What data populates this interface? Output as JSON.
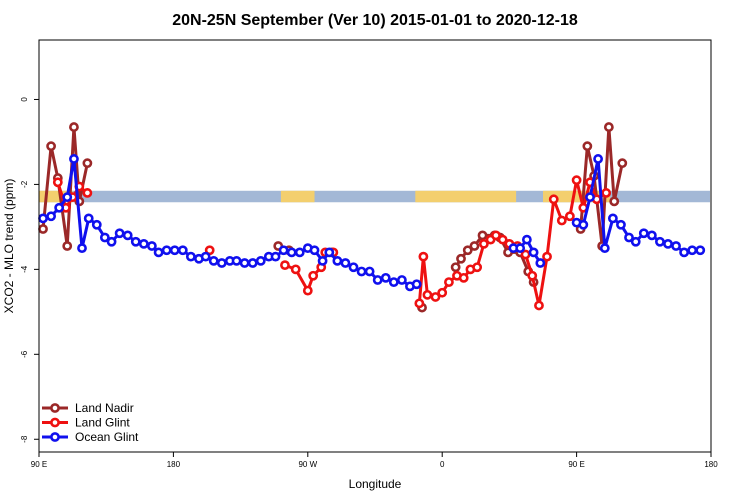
{
  "chart_data": {
    "type": "line",
    "title": "20N-25N September (Ver 10)   2015-01-01 to 2020-12-18",
    "xlabel": "Longitude",
    "ylabel": "XCO2 - MLO trend (ppm)",
    "xlim": [
      0,
      500
    ],
    "ylim": [
      -8.3,
      1.4
    ],
    "x_ticks": [
      {
        "value": 0,
        "label": "90 E"
      },
      {
        "value": 100,
        "label": "180"
      },
      {
        "value": 200,
        "label": "90 W"
      },
      {
        "value": 300,
        "label": "0"
      },
      {
        "value": 400,
        "label": "90 E"
      },
      {
        "value": 500,
        "label": "180"
      }
    ],
    "y_ticks": [
      {
        "value": 0,
        "label": "0"
      },
      {
        "value": -2,
        "label": "-2"
      },
      {
        "value": -4,
        "label": "-4"
      },
      {
        "value": -6,
        "label": "-6"
      },
      {
        "value": -8,
        "label": "-8"
      }
    ],
    "legend_position": "bottom-left",
    "land_band": {
      "y_range": [
        -2.15,
        -2.42
      ],
      "ocean_color": "#a3b8d6",
      "land_color": "#f3cf6e",
      "land_segments": [
        [
          0,
          25
        ],
        [
          180,
          205
        ],
        [
          280,
          355
        ],
        [
          375,
          425
        ]
      ]
    },
    "series": [
      {
        "name": "Land Nadir",
        "color": "#9b2828",
        "segments": [
          [
            [
              3,
              -3.05
            ],
            [
              9,
              -1.1
            ],
            [
              14,
              -1.85
            ],
            [
              21,
              -3.45
            ],
            [
              26,
              -0.65
            ],
            [
              30,
              -2.4
            ],
            [
              36,
              -1.5
            ]
          ],
          [
            [
              178,
              -3.45
            ],
            [
              186,
              -3.55
            ]
          ],
          [
            [
              218,
              -3.6
            ]
          ],
          [
            [
              285,
              -4.9
            ]
          ],
          [
            [
              310,
              -3.95
            ],
            [
              314,
              -3.75
            ],
            [
              319,
              -3.55
            ],
            [
              324,
              -3.45
            ],
            [
              330,
              -3.2
            ],
            [
              339,
              -3.2
            ],
            [
              343,
              -3.25
            ],
            [
              349,
              -3.6
            ],
            [
              358,
              -3.6
            ],
            [
              364,
              -4.05
            ],
            [
              368,
              -4.3
            ]
          ],
          [
            [
              403,
              -3.05
            ],
            [
              408,
              -1.1
            ],
            [
              413,
              -1.8
            ],
            [
              419,
              -3.45
            ],
            [
              424,
              -0.65
            ],
            [
              428,
              -2.4
            ],
            [
              434,
              -1.5
            ]
          ]
        ]
      },
      {
        "name": "Land Glint",
        "color": "#ee1111",
        "segments": [
          [
            [
              14,
              -1.95
            ],
            [
              20,
              -2.55
            ],
            [
              25,
              -2.3
            ],
            [
              30,
              -2.05
            ],
            [
              36,
              -2.2
            ]
          ],
          [
            [
              127,
              -3.55
            ]
          ],
          [
            [
              183,
              -3.9
            ],
            [
              191,
              -4.0
            ],
            [
              200,
              -4.5
            ],
            [
              204,
              -4.15
            ],
            [
              210,
              -3.95
            ],
            [
              213,
              -3.6
            ],
            [
              219,
              -3.6
            ]
          ],
          [
            [
              283,
              -4.8
            ],
            [
              286,
              -3.7
            ],
            [
              289,
              -4.6
            ],
            [
              295,
              -4.65
            ],
            [
              300,
              -4.55
            ],
            [
              305,
              -4.3
            ],
            [
              311,
              -4.15
            ],
            [
              316,
              -4.2
            ],
            [
              321,
              -4.0
            ],
            [
              326,
              -3.95
            ],
            [
              331,
              -3.4
            ],
            [
              336,
              -3.3
            ],
            [
              340,
              -3.2
            ],
            [
              345,
              -3.3
            ],
            [
              350,
              -3.4
            ],
            [
              356,
              -3.45
            ],
            [
              362,
              -3.65
            ],
            [
              367,
              -4.15
            ],
            [
              372,
              -4.85
            ],
            [
              378,
              -3.7
            ],
            [
              383,
              -2.35
            ],
            [
              389,
              -2.85
            ],
            [
              395,
              -2.75
            ],
            [
              400,
              -1.9
            ],
            [
              405,
              -2.55
            ],
            [
              410,
              -1.95
            ],
            [
              415,
              -2.35
            ],
            [
              422,
              -2.2
            ]
          ]
        ]
      },
      {
        "name": "Ocean Glint",
        "color": "#1010ee",
        "segments": [
          [
            [
              3,
              -2.8
            ],
            [
              9,
              -2.75
            ],
            [
              15,
              -2.55
            ],
            [
              21,
              -2.3
            ],
            [
              26,
              -1.4
            ],
            [
              32,
              -3.5
            ],
            [
              37,
              -2.8
            ],
            [
              43,
              -2.95
            ],
            [
              49,
              -3.25
            ],
            [
              54,
              -3.35
            ],
            [
              60,
              -3.15
            ],
            [
              66,
              -3.2
            ],
            [
              72,
              -3.35
            ],
            [
              78,
              -3.4
            ],
            [
              84,
              -3.45
            ],
            [
              89,
              -3.6
            ],
            [
              95,
              -3.55
            ],
            [
              101,
              -3.55
            ],
            [
              107,
              -3.55
            ],
            [
              113,
              -3.7
            ],
            [
              119,
              -3.75
            ],
            [
              124,
              -3.7
            ],
            [
              130,
              -3.8
            ],
            [
              136,
              -3.85
            ],
            [
              142,
              -3.8
            ],
            [
              147,
              -3.8
            ],
            [
              153,
              -3.85
            ],
            [
              159,
              -3.85
            ],
            [
              165,
              -3.8
            ],
            [
              171,
              -3.7
            ],
            [
              176,
              -3.7
            ],
            [
              182,
              -3.55
            ],
            [
              188,
              -3.6
            ],
            [
              194,
              -3.6
            ],
            [
              200,
              -3.5
            ],
            [
              205,
              -3.55
            ],
            [
              211,
              -3.8
            ],
            [
              216,
              -3.6
            ],
            [
              222,
              -3.8
            ],
            [
              228,
              -3.85
            ],
            [
              234,
              -3.95
            ],
            [
              240,
              -4.05
            ],
            [
              246,
              -4.05
            ],
            [
              252,
              -4.25
            ],
            [
              258,
              -4.2
            ],
            [
              264,
              -4.3
            ],
            [
              270,
              -4.25
            ],
            [
              276,
              -4.4
            ],
            [
              281,
              -4.35
            ]
          ],
          [
            [
              353,
              -3.5
            ],
            [
              358,
              -3.5
            ],
            [
              363,
              -3.3
            ],
            [
              368,
              -3.6
            ],
            [
              373,
              -3.85
            ]
          ],
          [
            [
              400,
              -2.9
            ],
            [
              405,
              -2.95
            ],
            [
              410,
              -2.3
            ],
            [
              416,
              -1.4
            ],
            [
              421,
              -3.5
            ],
            [
              427,
              -2.8
            ],
            [
              433,
              -2.95
            ],
            [
              439,
              -3.25
            ],
            [
              444,
              -3.35
            ],
            [
              450,
              -3.15
            ],
            [
              456,
              -3.2
            ],
            [
              462,
              -3.35
            ],
            [
              468,
              -3.4
            ],
            [
              474,
              -3.45
            ],
            [
              480,
              -3.6
            ],
            [
              486,
              -3.55
            ],
            [
              492,
              -3.55
            ]
          ]
        ]
      }
    ]
  }
}
